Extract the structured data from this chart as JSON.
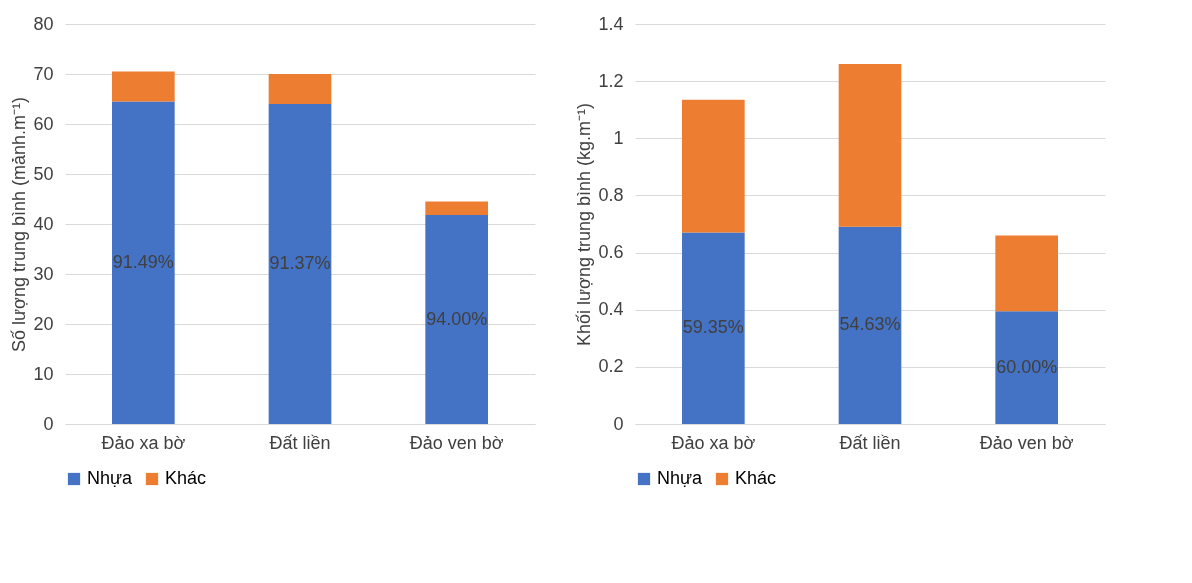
{
  "chart_data": [
    {
      "type": "bar",
      "stacked": true,
      "ylabel": "Số lượng trung bình (mảnh.m⁻¹)",
      "categories": [
        "Đảo xa bờ",
        "Đất liền",
        "Đảo ven bờ"
      ],
      "ylim": [
        0,
        80
      ],
      "yticks": [
        0,
        10,
        20,
        30,
        40,
        50,
        60,
        70,
        80
      ],
      "grid": "y",
      "legend": "bottom",
      "series": [
        {
          "name": "Nhựa",
          "color": "#4472c4",
          "values": [
            64.5,
            64,
            41.8
          ]
        },
        {
          "name": "Khác",
          "color": "#ed7d31",
          "values": [
            6,
            6,
            2.7
          ]
        }
      ],
      "annotations": [
        "91.49%",
        "91.37%",
        "94.00%"
      ]
    },
    {
      "type": "bar",
      "stacked": true,
      "ylabel": "Khối lượng trung bình (kg.m⁻¹)",
      "categories": [
        "Đảo xa bờ",
        "Đất liền",
        "Đảo ven bờ"
      ],
      "ylim": [
        0,
        1.4
      ],
      "yticks": [
        0,
        0.2,
        0.4,
        0.6,
        0.8,
        1,
        1.2,
        1.4
      ],
      "grid": "y",
      "legend": "bottom",
      "series": [
        {
          "name": "Nhựa",
          "color": "#4472c4",
          "values": [
            0.67,
            0.69,
            0.395
          ]
        },
        {
          "name": "Khác",
          "color": "#ed7d31",
          "values": [
            0.465,
            0.57,
            0.265
          ]
        }
      ],
      "annotations": [
        "59.35%",
        "54.63%",
        "60.00%"
      ]
    }
  ]
}
